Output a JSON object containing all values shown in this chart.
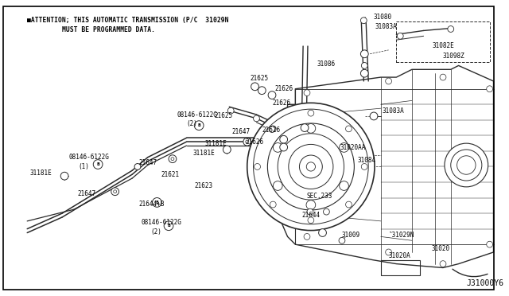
{
  "bg_color": "#ffffff",
  "border_color": "#000000",
  "line_color": "#2a2a2a",
  "title_line1": "■ATTENTION; THIS AUTOMATIC TRANSMISSION (P/C  31029N",
  "title_line2": "MUST BE PROGRAMMED DATA.",
  "watermark": "J31000Y6",
  "figsize": [
    6.4,
    3.72
  ],
  "dpi": 100
}
